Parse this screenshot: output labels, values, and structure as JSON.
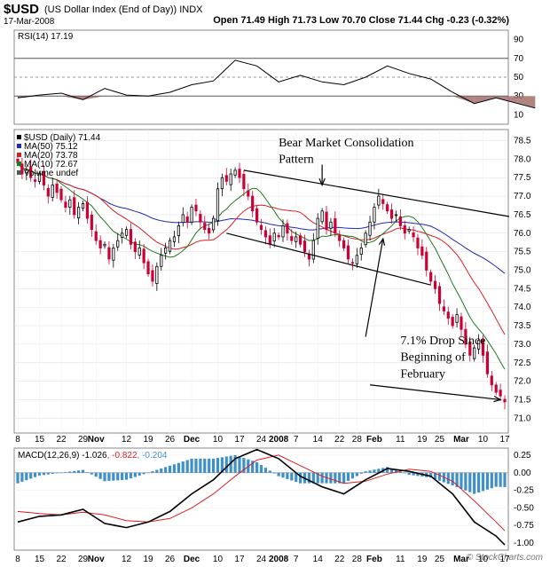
{
  "header": {
    "symbol": "$USD",
    "name": "(US Dollar Index (End of Day))",
    "exchange": "INDX",
    "date": "17-Mar-2008",
    "ohlc_line": "Open 71.49  High 71.73  Low 70.70  Close 71.44  Chg -0.23 (-0.32%)",
    "logo": "© StockCharts.com"
  },
  "colors": {
    "ma50": "#1f2bb0",
    "ma20": "#d62020",
    "ma10": "#1e7a1e",
    "up_candle": "#000000",
    "down_candle": "#cc0033",
    "rsi_shade": "#a0706a",
    "macd_hist": "#3f8fc8"
  },
  "chart_data": [
    {
      "type": "line",
      "panel": "rsi",
      "legend": "RSI(14) 17.19",
      "ylim": [
        0,
        100
      ],
      "y_ticks": [
        10,
        30,
        50,
        70,
        90
      ],
      "reference_lines": [
        30,
        50,
        70
      ],
      "x": [
        0,
        5,
        10,
        15,
        20,
        25,
        30,
        35,
        40,
        45,
        50,
        55,
        60,
        65,
        70,
        75,
        80,
        85,
        90,
        95,
        100,
        105,
        110,
        115,
        119
      ],
      "values": [
        28,
        31,
        33,
        26,
        38,
        31,
        30,
        34,
        42,
        46,
        68,
        62,
        45,
        52,
        45,
        42,
        50,
        62,
        54,
        48,
        34,
        22,
        28,
        22,
        17.19
      ]
    },
    {
      "type": "candlestick",
      "panel": "price",
      "legend": [
        {
          "name": "$USD (Daily) 71.44"
        },
        {
          "name": "MA(50) 75.12"
        },
        {
          "name": "MA(20) 73.78"
        },
        {
          "name": "MA(10) 72.67"
        },
        {
          "name": "Volume undef"
        }
      ],
      "ylim": [
        70.6,
        78.8
      ],
      "y_ticks": [
        "78.5",
        "78.0",
        "77.5",
        "77.0",
        "76.5",
        "76.0",
        "75.5",
        "75.0",
        "74.5",
        "74.0",
        "73.5",
        "73.0",
        "72.5",
        "72.0",
        "71.5",
        "71.0"
      ],
      "x_tick_labels": [
        {
          "label": "8",
          "i": 0
        },
        {
          "label": "15",
          "i": 5
        },
        {
          "label": "22",
          "i": 10
        },
        {
          "label": "29",
          "i": 15
        },
        {
          "label": "Nov",
          "i": 18
        },
        {
          "label": "12",
          "i": 25
        },
        {
          "label": "19",
          "i": 30
        },
        {
          "label": "26",
          "i": 35
        },
        {
          "label": "Dec",
          "i": 40
        },
        {
          "label": "10",
          "i": 46
        },
        {
          "label": "17",
          "i": 51
        },
        {
          "label": "24",
          "i": 56
        },
        {
          "label": "2008",
          "i": 60
        },
        {
          "label": "7",
          "i": 64
        },
        {
          "label": "14",
          "i": 69
        },
        {
          "label": "22",
          "i": 74
        },
        {
          "label": "28",
          "i": 78
        },
        {
          "label": "Feb",
          "i": 82
        },
        {
          "label": "11",
          "i": 88
        },
        {
          "label": "19",
          "i": 93
        },
        {
          "label": "25",
          "i": 97
        },
        {
          "label": "Mar",
          "i": 102
        },
        {
          "label": "10",
          "i": 107
        },
        {
          "label": "17",
          "i": 112
        }
      ],
      "closes": [
        77.9,
        77.6,
        77.7,
        77.5,
        77.4,
        77.6,
        77.3,
        77.0,
        77.3,
        77.1,
        76.9,
        76.7,
        76.9,
        76.5,
        76.7,
        76.8,
        76.4,
        76.1,
        75.8,
        75.6,
        75.7,
        75.3,
        75.6,
        75.8,
        76.0,
        76.1,
        75.7,
        75.5,
        75.6,
        75.2,
        74.9,
        74.7,
        75.1,
        75.4,
        75.6,
        75.8,
        75.9,
        76.2,
        76.5,
        76.3,
        76.7,
        76.6,
        76.3,
        76.1,
        76.0,
        76.4,
        77.2,
        77.5,
        77.4,
        77.6,
        77.7,
        77.5,
        77.2,
        77.0,
        76.6,
        76.3,
        76.1,
        75.9,
        75.7,
        76.0,
        75.9,
        76.2,
        76.0,
        75.8,
        75.9,
        75.7,
        75.5,
        75.3,
        75.8,
        76.4,
        76.6,
        76.1,
        76.3,
        76.0,
        75.8,
        75.6,
        75.3,
        75.2,
        75.4,
        75.6,
        76.0,
        76.3,
        76.7,
        77.0,
        76.8,
        76.6,
        76.4,
        76.5,
        76.2,
        76.0,
        76.1,
        75.9,
        75.6,
        75.4,
        75.0,
        74.7,
        74.5,
        74.1,
        73.9,
        73.7,
        73.5,
        73.8,
        73.4,
        73.0,
        72.7,
        72.9,
        73.1,
        72.7,
        72.2,
        71.9,
        71.7,
        71.6,
        71.44
      ],
      "annotations": [
        {
          "text": "Bear Market Consolidation",
          "x": 60,
          "y": 78.35
        },
        {
          "text": "Pattern",
          "x": 60,
          "y": 77.9
        },
        {
          "text": "7.1% Drop Since",
          "x": 88,
          "y": 73.0
        },
        {
          "text": "Beginning of",
          "x": 88,
          "y": 72.55
        },
        {
          "text": "February",
          "x": 88,
          "y": 72.1
        }
      ],
      "trendlines": [
        {
          "from": [
            52,
            77.7
          ],
          "to": [
            113,
            76.45
          ]
        },
        {
          "from": [
            48,
            76.0
          ],
          "to": [
            95,
            74.6
          ]
        }
      ],
      "arrows": [
        {
          "from": [
            70,
            77.85
          ],
          "to": [
            70,
            77.3
          ]
        },
        {
          "from": [
            80,
            73.2
          ],
          "to": [
            84,
            75.85
          ]
        },
        {
          "from": [
            81,
            71.9
          ],
          "to": [
            111,
            71.5
          ]
        }
      ]
    },
    {
      "type": "line",
      "panel": "macd",
      "legend": [
        {
          "name": "MACD(12,26,9)",
          "value": "-1.026"
        },
        {
          "name": "",
          "value": "-0.822"
        },
        {
          "name": "",
          "value": "-0.204"
        }
      ],
      "ylim": [
        -1.1,
        0.35
      ],
      "y_ticks": [
        "0.25",
        "0.00",
        "-0.25",
        "-0.50",
        "-0.75",
        "-1.00"
      ],
      "x": [
        0,
        5,
        10,
        15,
        20,
        25,
        30,
        35,
        40,
        45,
        50,
        55,
        60,
        65,
        70,
        75,
        80,
        85,
        90,
        95,
        100,
        105,
        110,
        112
      ],
      "macd": [
        -0.7,
        -0.62,
        -0.6,
        -0.52,
        -0.72,
        -0.78,
        -0.7,
        -0.55,
        -0.3,
        -0.1,
        0.2,
        0.33,
        0.2,
        -0.05,
        -0.2,
        -0.3,
        -0.1,
        0.06,
        0.02,
        -0.05,
        -0.3,
        -0.7,
        -0.9,
        -1.026
      ],
      "signal": [
        -0.55,
        -0.58,
        -0.6,
        -0.56,
        -0.6,
        -0.68,
        -0.7,
        -0.65,
        -0.5,
        -0.3,
        -0.05,
        0.18,
        0.25,
        0.1,
        -0.05,
        -0.15,
        -0.12,
        -0.02,
        0.05,
        0.02,
        -0.12,
        -0.4,
        -0.7,
        -0.822
      ],
      "histogram": [
        -0.15,
        -0.04,
        0.0,
        0.04,
        -0.12,
        -0.1,
        0.0,
        0.1,
        0.2,
        0.2,
        0.25,
        0.15,
        -0.05,
        -0.15,
        -0.15,
        -0.15,
        0.02,
        0.08,
        -0.03,
        -0.07,
        -0.18,
        -0.3,
        -0.2,
        -0.204
      ]
    }
  ]
}
